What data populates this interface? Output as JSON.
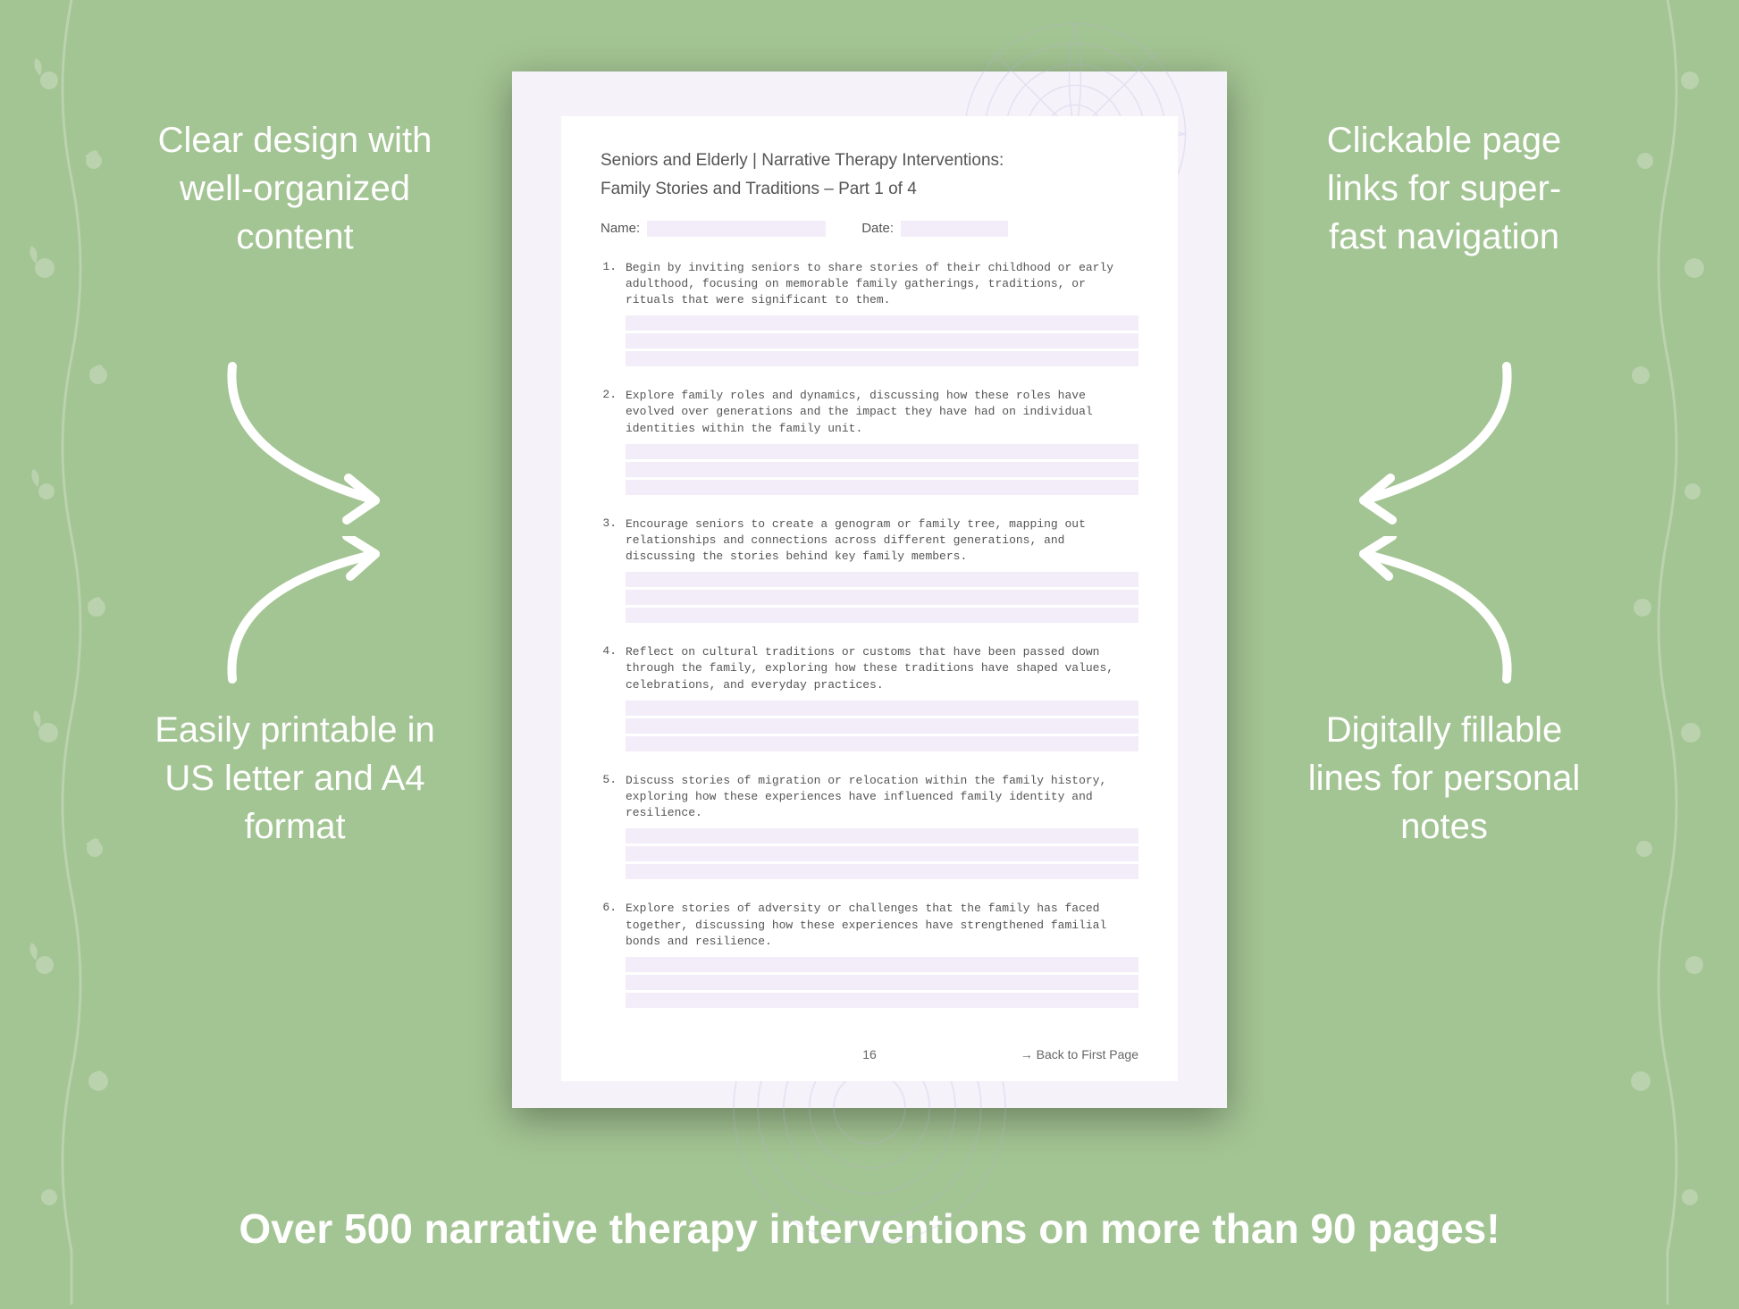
{
  "background_color": "#a3c493",
  "page_bg": "#f5f2fa",
  "inner_bg": "#ffffff",
  "fill_line_color": "#f2edf8",
  "callouts": {
    "top_left": "Clear design with well-organized content",
    "top_right": "Clickable page links for super-fast navigation",
    "bottom_left": "Easily printable in US letter and A4 format",
    "bottom_right": "Digitally fillable lines for personal notes"
  },
  "bottom_banner": "Over 500 narrative therapy interventions on more than 90 pages!",
  "document": {
    "title_line1": "Seniors and Elderly | Narrative Therapy Interventions:",
    "title_line2": "Family Stories and Traditions – Part 1 of 4",
    "name_label": "Name:",
    "date_label": "Date:",
    "page_number": "16",
    "back_link": "→ Back to First Page",
    "items": [
      {
        "n": "1.",
        "text": "Begin by inviting seniors to share stories of their childhood or early adulthood, focusing on memorable family gatherings, traditions, or rituals that were significant to them."
      },
      {
        "n": "2.",
        "text": "Explore family roles and dynamics, discussing how these roles have evolved over generations and the impact they have had on individual identities within the family unit."
      },
      {
        "n": "3.",
        "text": "Encourage seniors to create a genogram or family tree, mapping out relationships and connections across different generations, and discussing the stories behind key family members."
      },
      {
        "n": "4.",
        "text": "Reflect on cultural traditions or customs that have been passed down through the family, exploring how these traditions have shaped values, celebrations, and everyday practices."
      },
      {
        "n": "5.",
        "text": "Discuss stories of migration or relocation within the family history, exploring how these experiences have influenced family identity and resilience."
      },
      {
        "n": "6.",
        "text": "Explore stories of adversity or challenges that the family has faced together, discussing how these experiences have strengthened familial bonds and resilience."
      }
    ]
  }
}
